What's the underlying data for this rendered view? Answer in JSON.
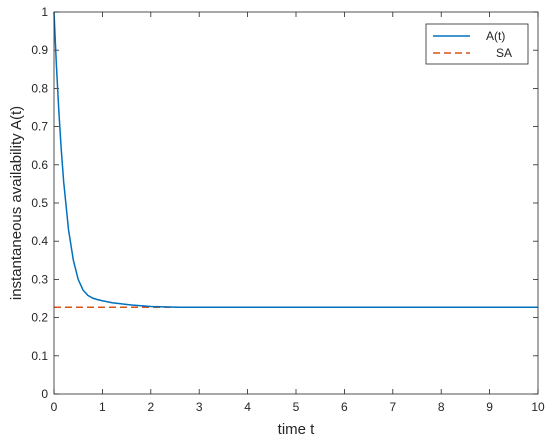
{
  "colors": {
    "background": "#ffffff",
    "axes": "#262626",
    "series_a": "#0072BD",
    "series_sa": "#D95319"
  },
  "chart_data": {
    "type": "line",
    "title": "",
    "xlabel": "time t",
    "ylabel": "instantaneous availability A(t)",
    "xlim": [
      0,
      10
    ],
    "ylim": [
      0,
      1
    ],
    "xticks": [
      0,
      1,
      2,
      3,
      4,
      5,
      6,
      7,
      8,
      9,
      10
    ],
    "xtick_labels": [
      "0",
      "1",
      "2",
      "3",
      "4",
      "5",
      "6",
      "7",
      "8",
      "9",
      "10"
    ],
    "yticks": [
      0,
      0.1,
      0.2,
      0.3,
      0.4,
      0.5,
      0.6,
      0.7,
      0.8,
      0.9,
      1
    ],
    "ytick_labels": [
      "0",
      "0.1",
      "0.2",
      "0.3",
      "0.4",
      "0.5",
      "0.6",
      "0.7",
      "0.8",
      "0.9",
      "1"
    ],
    "grid": false,
    "legend_position": "top-right",
    "series": [
      {
        "name": "A(t)",
        "style": "solid",
        "color": "#0072BD",
        "x": [
          0,
          0.05,
          0.1,
          0.15,
          0.2,
          0.3,
          0.4,
          0.5,
          0.6,
          0.7,
          0.8,
          0.9,
          1.0,
          1.2,
          1.4,
          1.6,
          1.8,
          2.0,
          2.3,
          2.6,
          3.0,
          3.5,
          4.0,
          5.0,
          6.0,
          7.0,
          8.0,
          9.0,
          10.0
        ],
        "y": [
          1.0,
          0.86,
          0.74,
          0.64,
          0.555,
          0.43,
          0.35,
          0.3,
          0.272,
          0.258,
          0.251,
          0.247,
          0.244,
          0.239,
          0.236,
          0.233,
          0.231,
          0.229,
          0.228,
          0.227,
          0.227,
          0.227,
          0.227,
          0.227,
          0.227,
          0.227,
          0.227,
          0.227,
          0.227
        ]
      },
      {
        "name": "SA",
        "style": "dashed",
        "color": "#D95319",
        "x": [
          0,
          10
        ],
        "y": [
          0.227,
          0.227
        ]
      }
    ]
  }
}
